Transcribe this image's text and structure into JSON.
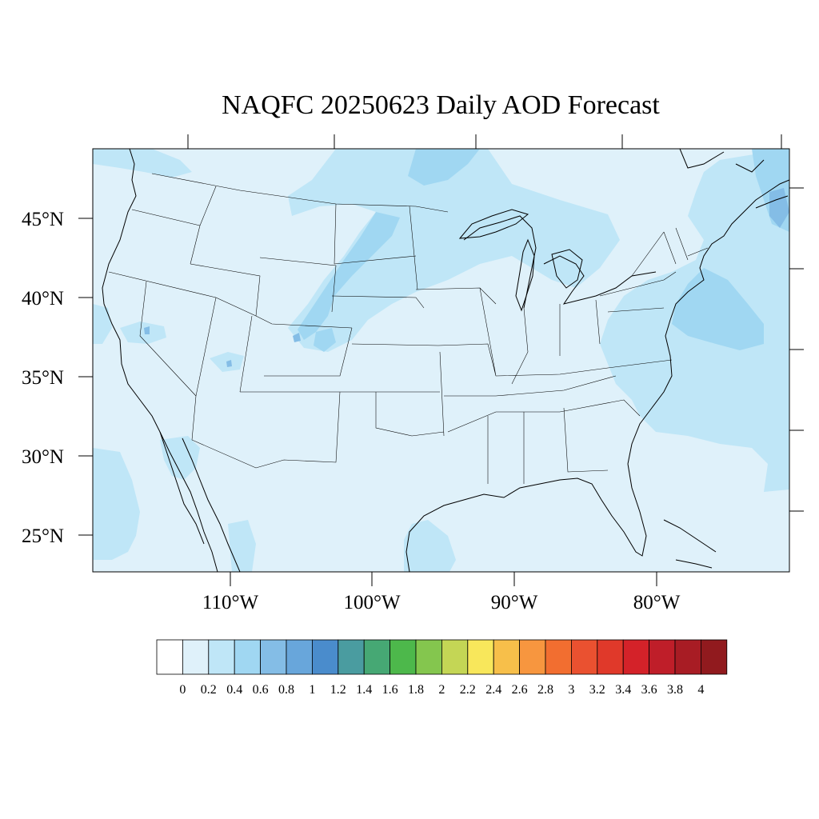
{
  "title": "NAQFC 20250623 Daily AOD Forecast",
  "map": {
    "lat_labels": [
      "45°N",
      "40°N",
      "35°N",
      "30°N",
      "25°N"
    ],
    "lon_labels": [
      "110°W",
      "100°W",
      "90°W",
      "80°W"
    ],
    "background_color": "#dff1fa",
    "boundary_color": "#000000"
  },
  "colorbar": {
    "labels": [
      "0",
      "0.2",
      "0.4",
      "0.6",
      "0.8",
      "1",
      "1.2",
      "1.4",
      "1.6",
      "1.8",
      "2",
      "2.2",
      "2.4",
      "2.6",
      "2.8",
      "3",
      "3.2",
      "3.4",
      "3.6",
      "3.8",
      "4"
    ],
    "colors": [
      "#ffffff",
      "#dff1fa",
      "#bfe6f7",
      "#a0d7f2",
      "#84bde6",
      "#68a6db",
      "#4a8ccc",
      "#4a9ca0",
      "#46a874",
      "#4db84b",
      "#84c64e",
      "#c4d655",
      "#f8e75b",
      "#f7bf4a",
      "#f7963f",
      "#f26e30",
      "#ea5130",
      "#e0392a",
      "#d42229",
      "#bf1e29",
      "#a81c24",
      "#911a1e"
    ]
  },
  "chart_data": {
    "type": "heatmap",
    "title": "NAQFC 20250623 Daily AOD Forecast",
    "variable": "Daily AOD",
    "date": "20250623",
    "levels": [
      0,
      0.2,
      0.4,
      0.6,
      0.8,
      1,
      1.2,
      1.4,
      1.6,
      1.8,
      2,
      2.2,
      2.4,
      2.6,
      2.8,
      3,
      3.2,
      3.4,
      3.6,
      3.8,
      4
    ],
    "lat_ticks": [
      45,
      40,
      35,
      30,
      25
    ],
    "lon_ticks": [
      -110,
      -100,
      -90,
      -80
    ],
    "grid": false,
    "legend": "bottom"
  }
}
